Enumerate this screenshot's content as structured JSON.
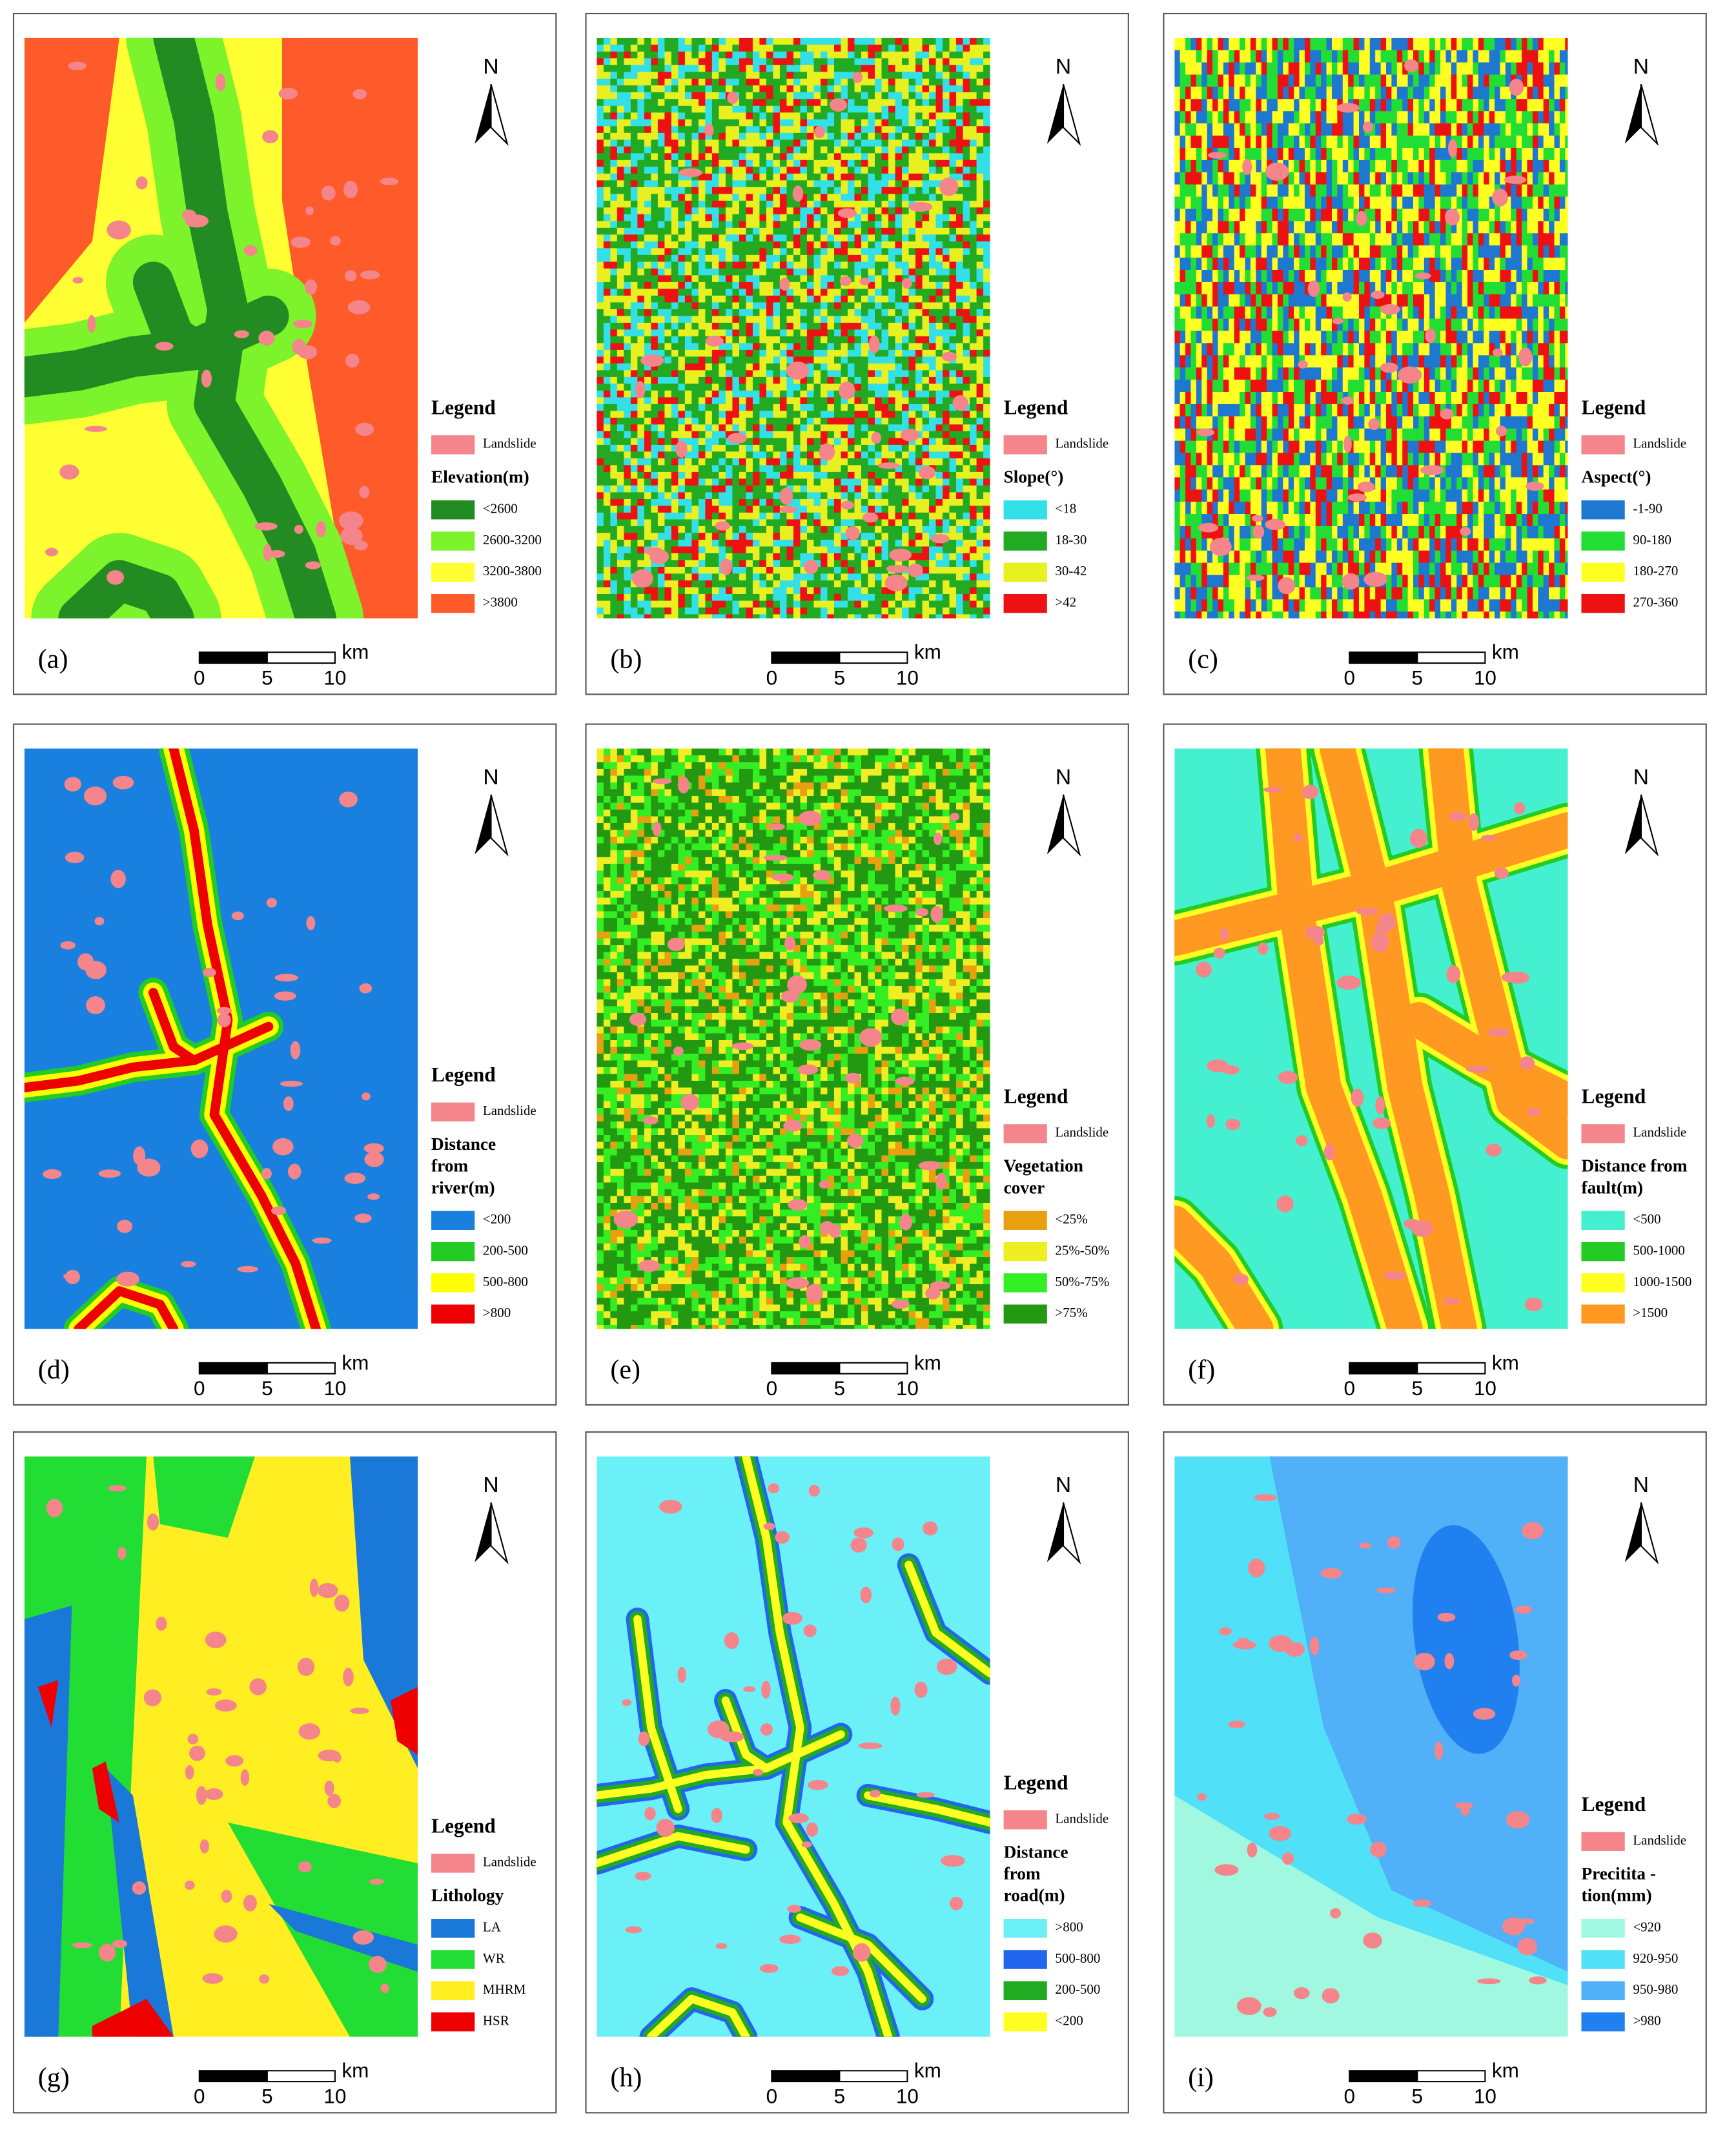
{
  "panels": [
    {
      "label": "(a)",
      "north": "N",
      "scale": {
        "ticks": [
          0,
          5,
          10
        ],
        "unit": "km"
      },
      "legend": {
        "title": "Legend",
        "landslide": {
          "label": "Landslide",
          "color": "#f4858a"
        },
        "factor": [
          "Elevation(m)"
        ],
        "items": [
          {
            "label": "<2600",
            "color": "#228b22"
          },
          {
            "label": "2600-3200",
            "color": "#7cf32a"
          },
          {
            "label": "3200-3800",
            "color": "#ffff33"
          },
          {
            "label": ">3800",
            "color": "#ff5a2a"
          }
        ]
      }
    },
    {
      "label": "(b)",
      "north": "N",
      "scale": {
        "ticks": [
          0,
          5,
          10
        ],
        "unit": "km"
      },
      "legend": {
        "title": "Legend",
        "landslide": {
          "label": "Landslide",
          "color": "#f4858a"
        },
        "factor": [
          "Slope(°)"
        ],
        "items": [
          {
            "label": "<18",
            "color": "#33e0e8"
          },
          {
            "label": "18-30",
            "color": "#22aa22"
          },
          {
            "label": "30-42",
            "color": "#e8f020"
          },
          {
            "label": ">42",
            "color": "#ee1111"
          }
        ]
      }
    },
    {
      "label": "(c)",
      "north": "N",
      "scale": {
        "ticks": [
          0,
          5,
          10
        ],
        "unit": "km"
      },
      "legend": {
        "title": "Legend",
        "landslide": {
          "label": "Landslide",
          "color": "#f4858a"
        },
        "factor": [
          "Aspect(°)"
        ],
        "items": [
          {
            "label": "-1-90",
            "color": "#1f78d0"
          },
          {
            "label": "90-180",
            "color": "#22dd33"
          },
          {
            "label": "180-270",
            "color": "#ffff22"
          },
          {
            "label": "270-360",
            "color": "#ee1111"
          }
        ]
      }
    },
    {
      "label": "(d)",
      "north": "N",
      "scale": {
        "ticks": [
          0,
          5,
          10
        ],
        "unit": "km"
      },
      "legend": {
        "title": "Legend",
        "landslide": {
          "label": "Landslide",
          "color": "#f4858a"
        },
        "factor": [
          "Distance",
          "from",
          "river(m)"
        ],
        "items": [
          {
            "label": "<200",
            "color": "#1a80e0"
          },
          {
            "label": "200-500",
            "color": "#22cc22"
          },
          {
            "label": "500-800",
            "color": "#ffff00"
          },
          {
            "label": ">800",
            "color": "#ee0000"
          }
        ]
      }
    },
    {
      "label": "(e)",
      "north": "N",
      "scale": {
        "ticks": [
          0,
          5,
          10
        ],
        "unit": "km"
      },
      "legend": {
        "title": "Legend",
        "landslide": {
          "label": "Landslide",
          "color": "#f4858a"
        },
        "factor": [
          "Vegetation",
          "cover"
        ],
        "items": [
          {
            "label": "<25%",
            "color": "#e8a010"
          },
          {
            "label": "25%-50%",
            "color": "#eeee22"
          },
          {
            "label": "50%-75%",
            "color": "#33ee22"
          },
          {
            "label": ">75%",
            "color": "#229911"
          }
        ]
      }
    },
    {
      "label": "(f)",
      "north": "N",
      "scale": {
        "ticks": [
          0,
          5,
          10
        ],
        "unit": "km"
      },
      "legend": {
        "title": "Legend",
        "landslide": {
          "label": "Landslide",
          "color": "#f4858a"
        },
        "factor": [
          "Distance from",
          "fault(m)"
        ],
        "items": [
          {
            "label": "<500",
            "color": "#44f0d0"
          },
          {
            "label": "500-1000",
            "color": "#22cc22"
          },
          {
            "label": "1000-1500",
            "color": "#ffff22"
          },
          {
            "label": ">1500",
            "color": "#ff9922"
          }
        ]
      }
    },
    {
      "label": "(g)",
      "north": "N",
      "scale": {
        "ticks": [
          0,
          5,
          10
        ],
        "unit": "km"
      },
      "legend": {
        "title": "Legend",
        "landslide": {
          "label": "Landslide",
          "color": "#f4858a"
        },
        "factor": [
          "Lithology"
        ],
        "items": [
          {
            "label": "LA",
            "color": "#1a78d8"
          },
          {
            "label": "WR",
            "color": "#22dd33"
          },
          {
            "label": "MHRM",
            "color": "#ffee22"
          },
          {
            "label": "HSR",
            "color": "#ee0000"
          }
        ]
      }
    },
    {
      "label": "(h)",
      "north": "N",
      "scale": {
        "ticks": [
          0,
          5,
          10
        ],
        "unit": "km"
      },
      "legend": {
        "title": "Legend",
        "landslide": {
          "label": "Landslide",
          "color": "#f4858a"
        },
        "factor": [
          "Distance",
          "from",
          "road(m)"
        ],
        "items": [
          {
            "label": ">800",
            "color": "#6cf0f8"
          },
          {
            "label": "500-800",
            "color": "#2266ee"
          },
          {
            "label": "200-500",
            "color": "#22aa22"
          },
          {
            "label": "<200",
            "color": "#ffff22"
          }
        ]
      }
    },
    {
      "label": "(i)",
      "north": "N",
      "scale": {
        "ticks": [
          0,
          5,
          10
        ],
        "unit": "km"
      },
      "legend": {
        "title": "Legend",
        "landslide": {
          "label": "Landslide",
          "color": "#f4858a"
        },
        "factor": [
          "Precitita -",
          "tion(mm)"
        ],
        "items": [
          {
            "label": "<920",
            "color": "#a0f8e0"
          },
          {
            "label": "920-950",
            "color": "#50e0f8"
          },
          {
            "label": "950-980",
            "color": "#50b0f8"
          },
          {
            "label": ">980",
            "color": "#2080f0"
          }
        ]
      }
    }
  ]
}
